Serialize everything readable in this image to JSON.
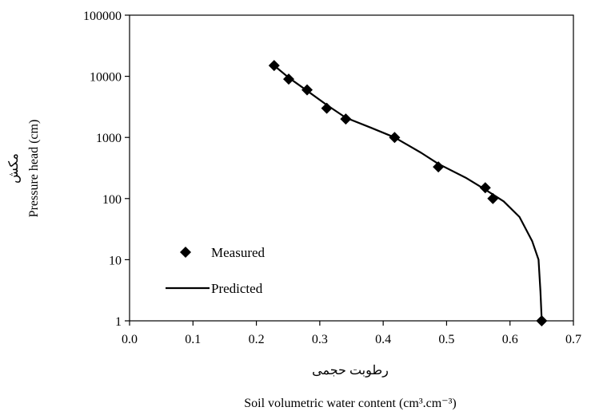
{
  "chart_data": {
    "type": "scatter",
    "title": "",
    "xlabel_fa": "رطوبت حجمی",
    "xlabel": "Soil volumetric water content  (cm³.cm⁻³)",
    "ylabel_fa": "مکش",
    "ylabel": "Pressure head (cm)",
    "xlim": [
      0.0,
      0.7
    ],
    "ylim": [
      1,
      100000
    ],
    "yscale": "log",
    "grid": false,
    "legend_position": "bottom-left",
    "x_ticks": [
      "0.0",
      "0.1",
      "0.2",
      "0.3",
      "0.4",
      "0.5",
      "0.6",
      "0.7"
    ],
    "y_ticks": [
      "1",
      "10",
      "100",
      "1000",
      "10000",
      "100000"
    ],
    "series": [
      {
        "name": "Measured",
        "type": "scatter",
        "marker": "diamond",
        "color": "#000000",
        "x": [
          0.228,
          0.251,
          0.28,
          0.311,
          0.341,
          0.418,
          0.487,
          0.561,
          0.573,
          0.65
        ],
        "y": [
          15000,
          9000,
          6000,
          3000,
          2000,
          1000,
          330,
          150,
          100,
          1
        ]
      },
      {
        "name": "Predicted",
        "type": "line",
        "color": "#000000",
        "x": [
          0.228,
          0.251,
          0.28,
          0.311,
          0.341,
          0.38,
          0.418,
          0.46,
          0.487,
          0.53,
          0.561,
          0.59,
          0.615,
          0.635,
          0.645,
          0.648,
          0.65
        ],
        "y": [
          15000,
          9500,
          5800,
          3400,
          2100,
          1450,
          1000,
          560,
          370,
          220,
          140,
          90,
          50,
          20,
          10,
          3,
          1
        ]
      }
    ]
  }
}
